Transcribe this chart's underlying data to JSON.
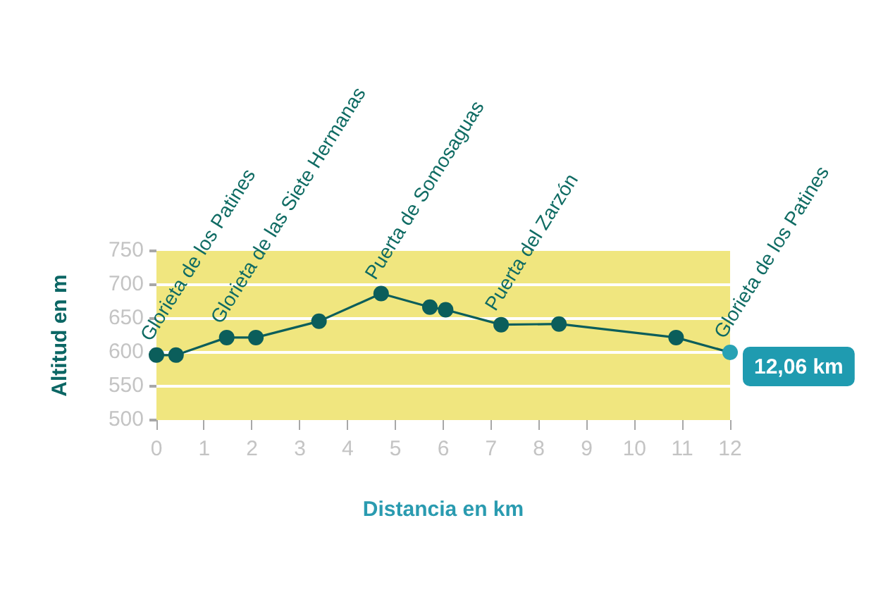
{
  "chart_data": {
    "type": "line",
    "xlabel": "Distancia en km",
    "ylabel": "Altitud en m",
    "x": [
      0,
      0.41,
      1.47,
      2.08,
      3.4,
      4.7,
      5.72,
      6.05,
      7.21,
      8.42,
      10.87,
      12
    ],
    "series": [
      {
        "color": "#0b5e5b",
        "colors": [
          "#0b5e5b",
          "#0b5e5b",
          "#0b5e5b",
          "#0b5e5b",
          "#0b5e5b",
          "#0b5e5b",
          "#0b5e5b",
          "#0b5e5b",
          "#0b5e5b",
          "#0b5e5b",
          "#0b5e5b",
          "#27a2b4"
        ],
        "values": [
          596,
          596,
          622,
          622,
          646,
          687,
          667,
          663,
          641,
          642,
          622,
          600
        ]
      }
    ],
    "xlim": [
      0,
      12
    ],
    "xticks": [
      0,
      1,
      2,
      3,
      4,
      5,
      6,
      7,
      8,
      9,
      10,
      11,
      12
    ],
    "ylim": [
      500,
      750
    ],
    "yticks": [
      500,
      550,
      600,
      650,
      700,
      750
    ],
    "grid": "y",
    "marker": "circle",
    "line_style": "solid",
    "annotations": [
      {
        "text": "Glorieta de los Patines",
        "x": 0,
        "y": 596
      },
      {
        "text": "Glorieta de las Siete Hermanas",
        "x": 1.47,
        "y": 622
      },
      {
        "text": "Puerta de Somosaguas",
        "x": 4.7,
        "y": 687
      },
      {
        "text": "Puerta del Zarzón",
        "x": 7.21,
        "y": 641
      },
      {
        "text": "Glorieta de los Patines",
        "x": 12,
        "y": 600
      },
      {
        "text": "12,06 km",
        "x": 12,
        "y": 600
      }
    ]
  }
}
